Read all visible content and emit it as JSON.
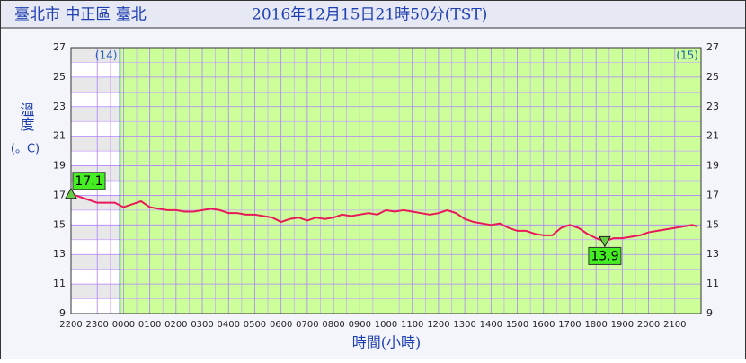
{
  "chart_data": {
    "type": "line",
    "location": "臺北市 中正區 臺北",
    "title": "2016年12月15日21時50分(TST)",
    "ylabel": "溫度",
    "yunit": "(。C)",
    "xlabel": "時間(小時)",
    "day_labels": [
      "(14)",
      "(15)"
    ],
    "x": [
      0,
      20,
      40,
      60,
      80,
      100,
      120,
      140,
      160,
      180,
      200,
      220,
      240,
      260,
      280,
      300,
      320,
      340,
      360,
      380,
      400,
      420,
      440,
      460,
      480,
      500,
      520,
      540,
      560,
      580,
      600,
      620,
      640,
      660,
      680,
      700,
      720,
      740,
      760,
      780,
      800,
      820,
      840,
      860,
      880,
      900,
      920,
      940,
      960,
      980,
      1000,
      1020,
      1040,
      1060,
      1080,
      1100,
      1120,
      1140,
      1160,
      1180,
      1200,
      1220,
      1240,
      1260,
      1280,
      1300,
      1320,
      1340,
      1360,
      1380,
      1400,
      1420,
      1430
    ],
    "series": [
      {
        "name": "溫度",
        "color": "#e8185a",
        "values": [
          17.1,
          16.9,
          16.7,
          16.5,
          16.5,
          16.5,
          16.2,
          16.4,
          16.6,
          16.2,
          16.1,
          16.0,
          16.0,
          15.9,
          15.9,
          16.0,
          16.1,
          16.0,
          15.8,
          15.8,
          15.7,
          15.7,
          15.6,
          15.5,
          15.2,
          15.4,
          15.5,
          15.3,
          15.5,
          15.4,
          15.5,
          15.7,
          15.6,
          15.7,
          15.8,
          15.7,
          16.0,
          15.9,
          16.0,
          15.9,
          15.8,
          15.7,
          15.8,
          16.0,
          15.8,
          15.4,
          15.2,
          15.1,
          15.0,
          15.1,
          14.8,
          14.6,
          14.6,
          14.4,
          14.3,
          14.3,
          14.8,
          15.0,
          14.8,
          14.4,
          14.1,
          13.9,
          14.1,
          14.1,
          14.2,
          14.3,
          14.5,
          14.6,
          14.7,
          14.8,
          14.9,
          15.0,
          14.9
        ]
      }
    ],
    "max_label": {
      "label": "17.1",
      "x": 0,
      "value": 17.1
    },
    "min_label": {
      "label": "13.9",
      "x": 1220,
      "value": 13.9
    },
    "xlim": [
      0,
      1440
    ],
    "xticks": [
      {
        "value": 0,
        "label": "2200"
      },
      {
        "value": 60,
        "label": "2300"
      },
      {
        "value": 120,
        "label": "0000"
      },
      {
        "value": 180,
        "label": "0100"
      },
      {
        "value": 240,
        "label": "0200"
      },
      {
        "value": 300,
        "label": "0300"
      },
      {
        "value": 360,
        "label": "0400"
      },
      {
        "value": 420,
        "label": "0500"
      },
      {
        "value": 480,
        "label": "0600"
      },
      {
        "value": 540,
        "label": "0700"
      },
      {
        "value": 600,
        "label": "0800"
      },
      {
        "value": 660,
        "label": "0900"
      },
      {
        "value": 720,
        "label": "1000"
      },
      {
        "value": 780,
        "label": "1100"
      },
      {
        "value": 840,
        "label": "1200"
      },
      {
        "value": 900,
        "label": "1300"
      },
      {
        "value": 960,
        "label": "1400"
      },
      {
        "value": 1020,
        "label": "1500"
      },
      {
        "value": 1080,
        "label": "1600"
      },
      {
        "value": 1140,
        "label": "1700"
      },
      {
        "value": 1200,
        "label": "1800"
      },
      {
        "value": 1260,
        "label": "1900"
      },
      {
        "value": 1320,
        "label": "2000"
      },
      {
        "value": 1380,
        "label": "2100"
      }
    ],
    "ylim": [
      9,
      27
    ],
    "yticks": [
      9,
      11,
      13,
      15,
      17,
      19,
      21,
      23,
      25,
      27
    ],
    "grid": true
  }
}
